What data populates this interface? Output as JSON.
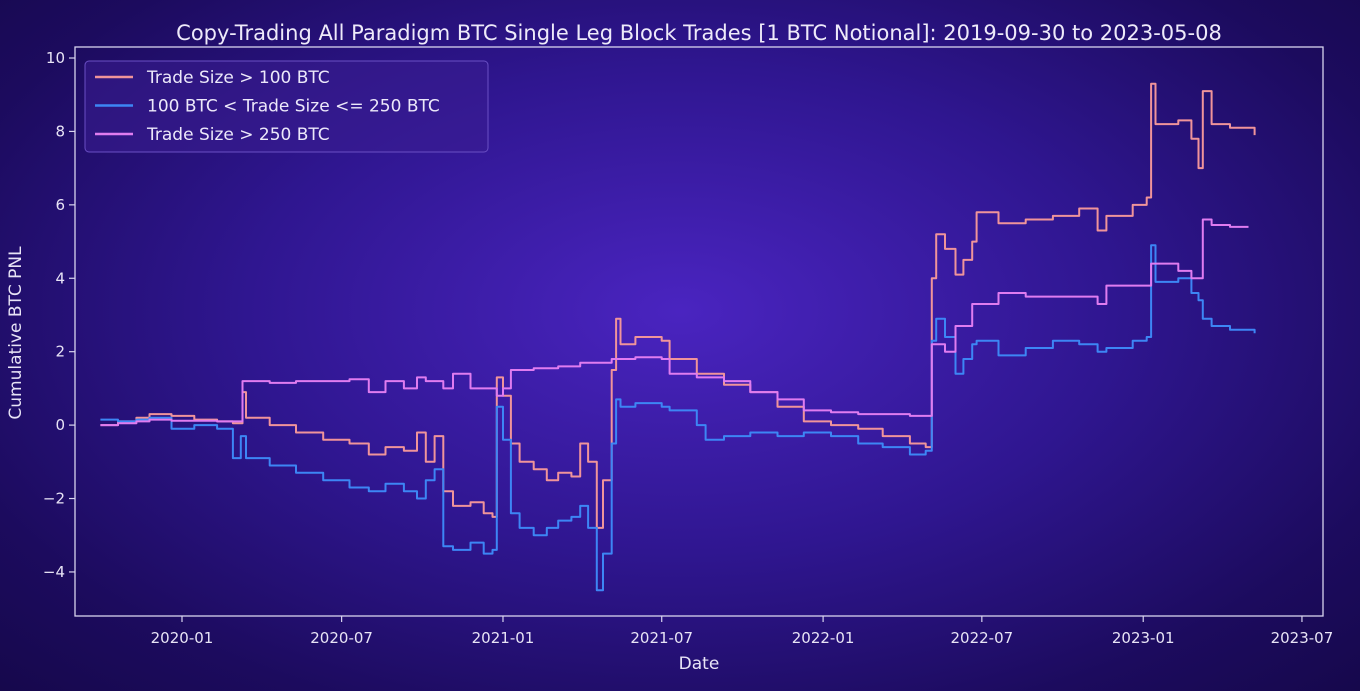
{
  "chart_data": {
    "type": "line",
    "title": "Copy-Trading All Paradigm BTC Single Leg Block Trades [1 BTC Notional]: 2019-09-30 to 2023-05-08",
    "xlabel": "Date",
    "ylabel": "Cumulative BTC PNL",
    "xlim": [
      "2019-09-01",
      "2023-07-25"
    ],
    "ylim": [
      -5.2,
      10.3
    ],
    "x_ticks": [
      "2020-01",
      "2020-07",
      "2021-01",
      "2021-07",
      "2022-01",
      "2022-07",
      "2023-01",
      "2023-07"
    ],
    "y_ticks": [
      -4,
      -2,
      0,
      2,
      4,
      6,
      8,
      10
    ],
    "legend_position": "top-left",
    "grid": false,
    "series": [
      {
        "name": "Trade Size > 100 BTC",
        "color": "#f0949a",
        "points": [
          [
            "2019-09-30",
            0.0
          ],
          [
            "2019-10-20",
            0.1
          ],
          [
            "2019-11-10",
            0.2
          ],
          [
            "2019-11-25",
            0.3
          ],
          [
            "2019-12-20",
            0.25
          ],
          [
            "2020-01-15",
            0.15
          ],
          [
            "2020-02-10",
            0.1
          ],
          [
            "2020-02-28",
            0.05
          ],
          [
            "2020-03-08",
            0.05
          ],
          [
            "2020-03-10",
            0.9
          ],
          [
            "2020-03-14",
            0.2
          ],
          [
            "2020-04-10",
            0.0
          ],
          [
            "2020-05-10",
            -0.2
          ],
          [
            "2020-06-10",
            -0.4
          ],
          [
            "2020-07-10",
            -0.5
          ],
          [
            "2020-08-01",
            -0.8
          ],
          [
            "2020-08-20",
            -0.6
          ],
          [
            "2020-09-10",
            -0.7
          ],
          [
            "2020-09-25",
            -0.2
          ],
          [
            "2020-10-05",
            -1.0
          ],
          [
            "2020-10-15",
            -0.3
          ],
          [
            "2020-10-25",
            -1.8
          ],
          [
            "2020-11-05",
            -2.2
          ],
          [
            "2020-11-25",
            -2.1
          ],
          [
            "2020-12-10",
            -2.4
          ],
          [
            "2020-12-20",
            -2.5
          ],
          [
            "2020-12-25",
            1.3
          ],
          [
            "2021-01-01",
            0.8
          ],
          [
            "2021-01-10",
            -0.5
          ],
          [
            "2021-01-20",
            -1.0
          ],
          [
            "2021-02-05",
            -1.2
          ],
          [
            "2021-02-20",
            -1.5
          ],
          [
            "2021-03-05",
            -1.3
          ],
          [
            "2021-03-20",
            -1.4
          ],
          [
            "2021-03-30",
            -0.5
          ],
          [
            "2021-04-08",
            -1.0
          ],
          [
            "2021-04-18",
            -2.8
          ],
          [
            "2021-04-25",
            -1.5
          ],
          [
            "2021-05-05",
            1.5
          ],
          [
            "2021-05-10",
            2.9
          ],
          [
            "2021-05-15",
            2.2
          ],
          [
            "2021-06-01",
            2.4
          ],
          [
            "2021-07-01",
            2.3
          ],
          [
            "2021-07-10",
            1.8
          ],
          [
            "2021-08-10",
            1.4
          ],
          [
            "2021-09-10",
            1.1
          ],
          [
            "2021-10-10",
            0.9
          ],
          [
            "2021-11-10",
            0.5
          ],
          [
            "2021-12-10",
            0.1
          ],
          [
            "2022-01-10",
            0.0
          ],
          [
            "2022-02-10",
            -0.1
          ],
          [
            "2022-03-10",
            -0.3
          ],
          [
            "2022-04-10",
            -0.5
          ],
          [
            "2022-04-28",
            -0.6
          ],
          [
            "2022-05-05",
            4.0
          ],
          [
            "2022-05-10",
            5.2
          ],
          [
            "2022-05-20",
            4.8
          ],
          [
            "2022-06-01",
            4.1
          ],
          [
            "2022-06-10",
            4.5
          ],
          [
            "2022-06-20",
            5.0
          ],
          [
            "2022-06-25",
            5.8
          ],
          [
            "2022-07-20",
            5.5
          ],
          [
            "2022-08-20",
            5.6
          ],
          [
            "2022-09-20",
            5.7
          ],
          [
            "2022-10-20",
            5.9
          ],
          [
            "2022-11-10",
            5.3
          ],
          [
            "2022-11-20",
            5.7
          ],
          [
            "2022-12-20",
            6.0
          ],
          [
            "2023-01-05",
            6.2
          ],
          [
            "2023-01-10",
            9.3
          ],
          [
            "2023-01-15",
            8.2
          ],
          [
            "2023-02-10",
            8.3
          ],
          [
            "2023-02-25",
            7.8
          ],
          [
            "2023-03-05",
            7.0
          ],
          [
            "2023-03-10",
            9.1
          ],
          [
            "2023-03-20",
            8.2
          ],
          [
            "2023-04-10",
            8.1
          ],
          [
            "2023-05-08",
            7.9
          ]
        ]
      },
      {
        "name": "100 BTC < Trade Size <= 250 BTC",
        "color": "#3d86f5",
        "points": [
          [
            "2019-09-30",
            0.15
          ],
          [
            "2019-10-20",
            0.1
          ],
          [
            "2019-11-10",
            0.15
          ],
          [
            "2019-11-25",
            0.2
          ],
          [
            "2019-12-20",
            -0.1
          ],
          [
            "2020-01-15",
            0.0
          ],
          [
            "2020-02-10",
            -0.1
          ],
          [
            "2020-02-28",
            -0.9
          ],
          [
            "2020-03-08",
            -0.3
          ],
          [
            "2020-03-14",
            -0.9
          ],
          [
            "2020-04-10",
            -1.1
          ],
          [
            "2020-05-10",
            -1.3
          ],
          [
            "2020-06-10",
            -1.5
          ],
          [
            "2020-07-10",
            -1.7
          ],
          [
            "2020-08-01",
            -1.8
          ],
          [
            "2020-08-20",
            -1.6
          ],
          [
            "2020-09-10",
            -1.8
          ],
          [
            "2020-09-25",
            -2.0
          ],
          [
            "2020-10-05",
            -1.5
          ],
          [
            "2020-10-15",
            -1.2
          ],
          [
            "2020-10-25",
            -3.3
          ],
          [
            "2020-11-05",
            -3.4
          ],
          [
            "2020-11-25",
            -3.2
          ],
          [
            "2020-12-10",
            -3.5
          ],
          [
            "2020-12-20",
            -3.4
          ],
          [
            "2020-12-25",
            0.5
          ],
          [
            "2021-01-01",
            -0.4
          ],
          [
            "2021-01-10",
            -2.4
          ],
          [
            "2021-01-20",
            -2.8
          ],
          [
            "2021-02-05",
            -3.0
          ],
          [
            "2021-02-20",
            -2.8
          ],
          [
            "2021-03-05",
            -2.6
          ],
          [
            "2021-03-20",
            -2.5
          ],
          [
            "2021-03-30",
            -2.2
          ],
          [
            "2021-04-08",
            -2.8
          ],
          [
            "2021-04-18",
            -4.5
          ],
          [
            "2021-04-25",
            -3.5
          ],
          [
            "2021-05-05",
            -0.5
          ],
          [
            "2021-05-10",
            0.7
          ],
          [
            "2021-05-15",
            0.5
          ],
          [
            "2021-06-01",
            0.6
          ],
          [
            "2021-07-01",
            0.5
          ],
          [
            "2021-07-10",
            0.4
          ],
          [
            "2021-08-10",
            0.0
          ],
          [
            "2021-08-20",
            -0.4
          ],
          [
            "2021-09-10",
            -0.3
          ],
          [
            "2021-10-10",
            -0.2
          ],
          [
            "2021-11-10",
            -0.3
          ],
          [
            "2021-12-10",
            -0.2
          ],
          [
            "2022-01-10",
            -0.3
          ],
          [
            "2022-02-10",
            -0.5
          ],
          [
            "2022-03-10",
            -0.6
          ],
          [
            "2022-04-10",
            -0.8
          ],
          [
            "2022-04-28",
            -0.7
          ],
          [
            "2022-05-05",
            2.3
          ],
          [
            "2022-05-10",
            2.9
          ],
          [
            "2022-05-20",
            2.4
          ],
          [
            "2022-06-01",
            1.4
          ],
          [
            "2022-06-10",
            1.8
          ],
          [
            "2022-06-20",
            2.2
          ],
          [
            "2022-06-25",
            2.3
          ],
          [
            "2022-07-20",
            1.9
          ],
          [
            "2022-08-20",
            2.1
          ],
          [
            "2022-09-20",
            2.3
          ],
          [
            "2022-10-20",
            2.2
          ],
          [
            "2022-11-10",
            2.0
          ],
          [
            "2022-11-20",
            2.1
          ],
          [
            "2022-12-20",
            2.3
          ],
          [
            "2023-01-05",
            2.4
          ],
          [
            "2023-01-10",
            4.9
          ],
          [
            "2023-01-15",
            3.9
          ],
          [
            "2023-02-10",
            4.0
          ],
          [
            "2023-02-25",
            3.6
          ],
          [
            "2023-03-05",
            3.4
          ],
          [
            "2023-03-10",
            2.9
          ],
          [
            "2023-03-20",
            2.7
          ],
          [
            "2023-04-10",
            2.6
          ],
          [
            "2023-05-08",
            2.5
          ]
        ]
      },
      {
        "name": "Trade Size > 250 BTC",
        "color": "#e07cf0",
        "points": [
          [
            "2019-09-30",
            0.0
          ],
          [
            "2019-10-20",
            0.05
          ],
          [
            "2019-11-10",
            0.1
          ],
          [
            "2019-11-25",
            0.15
          ],
          [
            "2019-12-20",
            0.12
          ],
          [
            "2020-01-15",
            0.12
          ],
          [
            "2020-02-10",
            0.1
          ],
          [
            "2020-02-28",
            0.1
          ],
          [
            "2020-03-08",
            0.1
          ],
          [
            "2020-03-10",
            1.2
          ],
          [
            "2020-04-10",
            1.15
          ],
          [
            "2020-05-10",
            1.2
          ],
          [
            "2020-06-10",
            1.2
          ],
          [
            "2020-07-10",
            1.25
          ],
          [
            "2020-08-01",
            0.9
          ],
          [
            "2020-08-20",
            1.2
          ],
          [
            "2020-09-10",
            1.0
          ],
          [
            "2020-09-25",
            1.3
          ],
          [
            "2020-10-05",
            1.2
          ],
          [
            "2020-10-25",
            1.0
          ],
          [
            "2020-11-05",
            1.4
          ],
          [
            "2020-11-25",
            1.0
          ],
          [
            "2020-12-10",
            1.0
          ],
          [
            "2020-12-20",
            1.0
          ],
          [
            "2020-12-25",
            0.8
          ],
          [
            "2021-01-01",
            1.0
          ],
          [
            "2021-01-10",
            1.5
          ],
          [
            "2021-02-05",
            1.55
          ],
          [
            "2021-03-05",
            1.6
          ],
          [
            "2021-03-30",
            1.7
          ],
          [
            "2021-04-18",
            1.7
          ],
          [
            "2021-05-05",
            1.8
          ],
          [
            "2021-06-01",
            1.85
          ],
          [
            "2021-07-01",
            1.8
          ],
          [
            "2021-07-10",
            1.4
          ],
          [
            "2021-08-10",
            1.3
          ],
          [
            "2021-09-10",
            1.2
          ],
          [
            "2021-10-10",
            0.9
          ],
          [
            "2021-11-10",
            0.7
          ],
          [
            "2021-12-10",
            0.4
          ],
          [
            "2022-01-10",
            0.35
          ],
          [
            "2022-02-10",
            0.3
          ],
          [
            "2022-03-10",
            0.3
          ],
          [
            "2022-04-10",
            0.25
          ],
          [
            "2022-04-28",
            0.25
          ],
          [
            "2022-05-05",
            2.2
          ],
          [
            "2022-05-20",
            2.0
          ],
          [
            "2022-06-01",
            2.7
          ],
          [
            "2022-06-20",
            3.3
          ],
          [
            "2022-07-20",
            3.6
          ],
          [
            "2022-08-20",
            3.5
          ],
          [
            "2022-09-20",
            3.5
          ],
          [
            "2022-10-20",
            3.5
          ],
          [
            "2022-11-10",
            3.3
          ],
          [
            "2022-11-20",
            3.8
          ],
          [
            "2022-12-20",
            3.8
          ],
          [
            "2023-01-05",
            3.8
          ],
          [
            "2023-01-10",
            4.4
          ],
          [
            "2023-02-10",
            4.2
          ],
          [
            "2023-02-25",
            4.0
          ],
          [
            "2023-03-05",
            4.0
          ],
          [
            "2023-03-10",
            5.6
          ],
          [
            "2023-03-20",
            5.45
          ],
          [
            "2023-04-10",
            5.4
          ],
          [
            "2023-05-01",
            5.4
          ]
        ]
      }
    ]
  }
}
